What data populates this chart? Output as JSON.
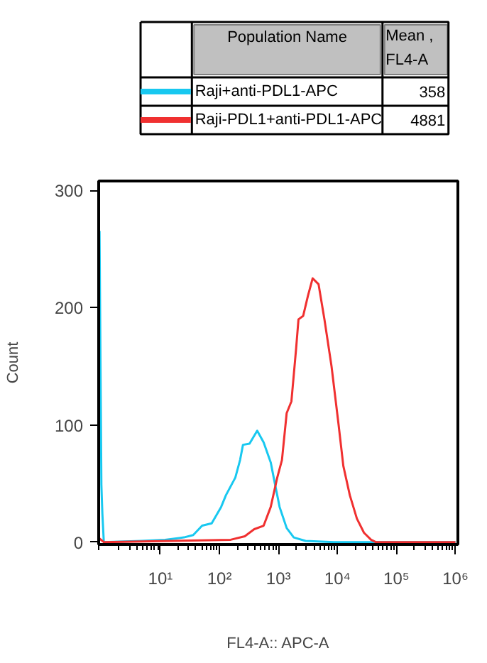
{
  "chart_data": {
    "type": "line",
    "xlabel": "FL4-A:: APC-A",
    "ylabel": "Count",
    "legend_title": "Population Name",
    "legend": "top",
    "annotations": [
      "Mean ,\nFL4-A",
      "358",
      "4881"
    ],
    "log": "x",
    "xlim": [
      0.9,
      1100000
    ],
    "ylim": [
      -2,
      308
    ],
    "xticks": [
      {
        "value": 10,
        "label": "10¹"
      },
      {
        "value": 100,
        "label": "10²"
      },
      {
        "value": 1000,
        "label": "10³"
      },
      {
        "value": 10000,
        "label": "10⁴"
      },
      {
        "value": 100000,
        "label": "10⁵"
      },
      {
        "value": 1000000,
        "label": "10⁶"
      }
    ],
    "yticks": [
      0,
      100,
      200,
      300
    ],
    "grid": false,
    "series": [
      {
        "name": "Raji+anti-PDL1-APC",
        "color": "#18c8f0",
        "x": [
          0.9,
          0.93,
          0.97,
          1.0,
          1.04,
          1.1,
          4.8,
          12,
          25,
          36,
          51,
          74,
          107,
          129,
          186,
          224,
          251,
          324,
          437,
          562,
          741,
          871,
          1047,
          1380,
          1820,
          2880,
          8710,
          1000000
        ],
        "values": [
          0,
          265,
          140,
          49,
          24,
          0,
          1,
          2,
          4,
          6,
          14,
          16,
          30,
          40,
          55,
          70,
          83,
          84,
          95,
          85,
          68,
          50,
          30,
          12,
          4,
          1,
          0,
          0
        ]
      },
      {
        "name": "Raji-PDL1+anti-PDL1-APC",
        "color": "#f03030",
        "x": [
          0.93,
          1.1,
          155,
          269,
          389,
          562,
          741,
          955,
          1148,
          1380,
          1660,
          1995,
          2188,
          2630,
          3162,
          3802,
          4786,
          6026,
          7943,
          10470,
          12590,
          16220,
          21380,
          28180,
          37150,
          44670,
          1000000
        ],
        "values": [
          3,
          0,
          2,
          5,
          11,
          14,
          30,
          55,
          70,
          110,
          120,
          165,
          190,
          193,
          210,
          225,
          220,
          190,
          150,
          100,
          65,
          40,
          20,
          8,
          2,
          0,
          0
        ]
      }
    ]
  }
}
